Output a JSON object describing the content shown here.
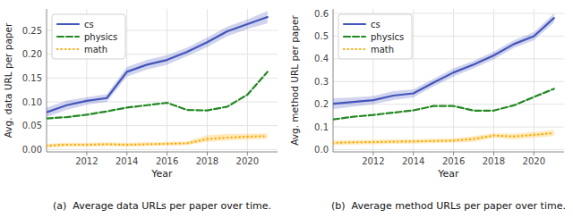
{
  "chart_data": [
    {
      "type": "line",
      "title": "(a)  Average data URLs per paper over time.",
      "x_label": "Year",
      "y_label": "Avg. data URL per paper",
      "x": [
        2010,
        2011,
        2012,
        2013,
        2014,
        2015,
        2016,
        2017,
        2018,
        2019,
        2020,
        2021
      ],
      "series": [
        {
          "name": "cs",
          "color": "#4455bb",
          "line_style": "solid",
          "values": [
            0.078,
            0.093,
            0.102,
            0.108,
            0.163,
            0.178,
            0.188,
            0.205,
            0.225,
            0.248,
            0.263,
            0.278
          ],
          "lower": [
            0.068,
            0.083,
            0.094,
            0.1,
            0.153,
            0.168,
            0.178,
            0.196,
            0.215,
            0.238,
            0.253,
            0.265
          ],
          "upper": [
            0.088,
            0.103,
            0.11,
            0.116,
            0.173,
            0.188,
            0.198,
            0.214,
            0.235,
            0.258,
            0.273,
            0.291
          ]
        },
        {
          "name": "physics",
          "color": "#228822",
          "line_style": "dashed",
          "values": [
            0.065,
            0.068,
            0.073,
            0.08,
            0.088,
            0.093,
            0.098,
            0.083,
            0.082,
            0.09,
            0.115,
            0.163
          ]
        },
        {
          "name": "math",
          "color": "#ffaa00",
          "line_style": "dotted",
          "values": [
            0.008,
            0.01,
            0.01,
            0.011,
            0.01,
            0.011,
            0.012,
            0.013,
            0.022,
            0.025,
            0.027,
            0.028
          ],
          "lower": [
            0.004,
            0.006,
            0.006,
            0.007,
            0.006,
            0.007,
            0.008,
            0.009,
            0.016,
            0.019,
            0.021,
            0.022
          ],
          "upper": [
            0.012,
            0.014,
            0.014,
            0.015,
            0.014,
            0.015,
            0.016,
            0.017,
            0.03,
            0.033,
            0.033,
            0.034
          ]
        }
      ],
      "xlim": [
        2010.0,
        2021.5
      ],
      "xticks": [
        2012,
        2014,
        2016,
        2018,
        2020
      ],
      "ylim": [
        -0.005,
        0.295
      ],
      "yticks": [
        {
          "value": 0.0,
          "label": "0.00"
        },
        0.05,
        {
          "value": 0.1,
          "label": "0.10"
        },
        0.15,
        {
          "value": 0.2,
          "label": "0.20"
        },
        0.25
      ],
      "grid": true,
      "legend": "upper left"
    },
    {
      "type": "line",
      "title": "(b)  Average method URLs per paper over time.",
      "x_label": "Year",
      "y_label": "Avg. method URL per paper",
      "x": [
        2010,
        2011,
        2012,
        2013,
        2014,
        2015,
        2016,
        2017,
        2018,
        2019,
        2020,
        2021
      ],
      "series": [
        {
          "name": "cs",
          "color": "#4455bb",
          "line_style": "solid",
          "values": [
            0.202,
            0.21,
            0.218,
            0.238,
            0.248,
            0.295,
            0.34,
            0.375,
            0.415,
            0.465,
            0.5,
            0.58
          ],
          "lower": [
            0.178,
            0.19,
            0.2,
            0.218,
            0.23,
            0.278,
            0.322,
            0.358,
            0.398,
            0.448,
            0.482,
            0.56
          ],
          "upper": [
            0.226,
            0.23,
            0.236,
            0.258,
            0.266,
            0.312,
            0.358,
            0.392,
            0.432,
            0.482,
            0.518,
            0.6
          ]
        },
        {
          "name": "physics",
          "color": "#228822",
          "line_style": "dashed",
          "values": [
            0.133,
            0.145,
            0.153,
            0.163,
            0.173,
            0.192,
            0.192,
            0.172,
            0.172,
            0.195,
            0.232,
            0.268
          ]
        },
        {
          "name": "math",
          "color": "#ffaa00",
          "line_style": "dotted",
          "values": [
            0.03,
            0.032,
            0.033,
            0.035,
            0.036,
            0.038,
            0.04,
            0.047,
            0.062,
            0.058,
            0.065,
            0.073
          ],
          "lower": [
            0.02,
            0.022,
            0.023,
            0.025,
            0.026,
            0.028,
            0.03,
            0.034,
            0.052,
            0.045,
            0.052,
            0.06
          ],
          "upper": [
            0.04,
            0.042,
            0.043,
            0.045,
            0.046,
            0.048,
            0.05,
            0.06,
            0.072,
            0.071,
            0.078,
            0.086
          ]
        }
      ],
      "xlim": [
        2010.0,
        2021.5
      ],
      "xticks": [
        2012,
        2014,
        2016,
        2018,
        2020
      ],
      "ylim": [
        -0.01,
        0.62
      ],
      "yticks": [
        {
          "value": 0.0,
          "label": "0.0"
        },
        0.1,
        0.2,
        0.3,
        0.4,
        0.5,
        0.6
      ],
      "grid": true,
      "legend": "upper left"
    }
  ]
}
